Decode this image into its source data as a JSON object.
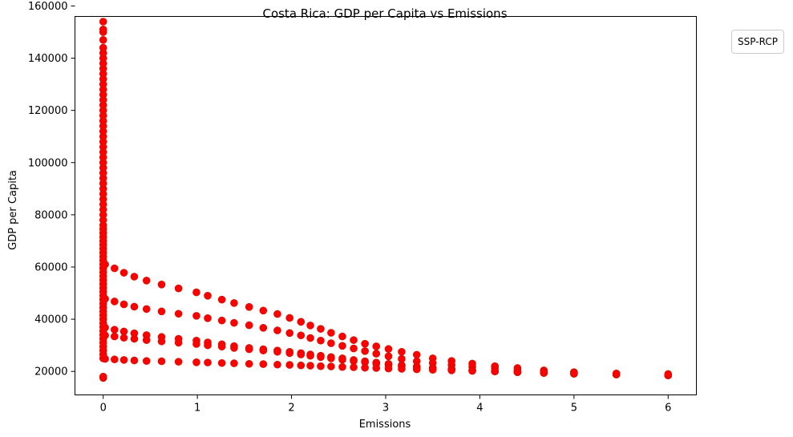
{
  "chart_data": {
    "type": "scatter",
    "title": "Costa Rica: GDP per Capita vs Emissions",
    "xlabel": "Emissions",
    "ylabel": "GDP per Capita",
    "xlim": [
      -0.3,
      6.3
    ],
    "ylim": [
      11000,
      156000
    ],
    "x_ticks": [
      0,
      1,
      2,
      3,
      4,
      5,
      6
    ],
    "y_ticks": [
      20000,
      40000,
      60000,
      80000,
      100000,
      120000,
      140000,
      160000
    ],
    "legend_title": "SSP-RCP",
    "legend_position": "outside upper right",
    "grid": false,
    "marker_color": "#ff0000",
    "marker_edge": "#cc1100",
    "series": [
      {
        "x": [
          0.02,
          0.12,
          0.22,
          0.33,
          0.46,
          0.62,
          0.8,
          0.99,
          1.11,
          1.26,
          1.39,
          1.55,
          1.7,
          1.85,
          1.98,
          2.1,
          2.2,
          2.31,
          2.42,
          2.54,
          2.66,
          2.78,
          2.9,
          3.03,
          3.17,
          3.33,
          3.5,
          3.7,
          3.92,
          4.16,
          4.4,
          4.68,
          5.0,
          5.45,
          6.0
        ],
        "y": [
          61000,
          59500,
          57800,
          56300,
          54800,
          53300,
          51800,
          50300,
          49000,
          47500,
          46200,
          44700,
          43300,
          42000,
          40500,
          39000,
          37600,
          36300,
          34800,
          33400,
          32000,
          30600,
          29600,
          28600,
          27500,
          26400,
          25000,
          24000,
          23000,
          22000,
          21300,
          20400,
          19700,
          19000,
          18500
        ]
      },
      {
        "x": [
          0.02,
          0.12,
          0.22,
          0.33,
          0.46,
          0.62,
          0.8,
          0.99,
          1.11,
          1.26,
          1.39,
          1.55,
          1.7,
          1.85,
          1.98,
          2.1,
          2.2,
          2.31,
          2.42,
          2.54,
          2.66,
          2.78,
          2.9,
          3.03,
          3.17,
          3.33,
          3.5,
          3.7,
          3.92,
          4.16,
          4.4,
          4.68,
          5.0,
          5.45,
          6.0
        ],
        "y": [
          47800,
          46800,
          45700,
          44800,
          43900,
          43000,
          42100,
          41300,
          40400,
          39500,
          38600,
          37700,
          36700,
          35700,
          34700,
          33800,
          32800,
          31800,
          30800,
          29800,
          28800,
          27800,
          26800,
          25800,
          24800,
          23900,
          23200,
          22500,
          21800,
          21200,
          20500,
          20000,
          19500,
          19000,
          18500
        ]
      },
      {
        "x": [
          0.02,
          0.12,
          0.22,
          0.33,
          0.46,
          0.62,
          0.8,
          0.99,
          1.11,
          1.26,
          1.39,
          1.55,
          1.7,
          1.85,
          1.98,
          2.1,
          2.2,
          2.31,
          2.42,
          2.54,
          2.66,
          2.78,
          2.9,
          3.03,
          3.17,
          3.33,
          3.5,
          3.7,
          3.92,
          4.16,
          4.4,
          4.68,
          5.0,
          5.45,
          6.0
        ],
        "y": [
          36800,
          36000,
          35300,
          34600,
          33900,
          33200,
          32500,
          31800,
          31100,
          30400,
          29700,
          29000,
          28500,
          28000,
          27500,
          27000,
          26500,
          26000,
          25500,
          25000,
          24400,
          23900,
          23400,
          22900,
          22400,
          21900,
          21400,
          20900,
          20400,
          20000,
          19700,
          19400,
          19100,
          18800,
          18500
        ]
      },
      {
        "x": [
          0.02,
          0.12,
          0.22,
          0.33,
          0.46,
          0.62,
          0.8,
          0.99,
          1.11,
          1.26,
          1.39,
          1.55,
          1.7,
          1.85,
          1.98,
          2.1,
          2.2,
          2.31,
          2.42,
          2.54,
          2.66,
          2.78,
          2.9,
          3.03,
          3.17,
          3.33,
          3.5,
          3.7,
          3.92,
          4.16,
          4.4,
          4.68,
          5.0,
          5.45,
          6.0
        ],
        "y": [
          33800,
          33400,
          32900,
          32500,
          32000,
          31500,
          31000,
          30500,
          30000,
          29500,
          29000,
          28500,
          28000,
          27500,
          27000,
          26500,
          26000,
          25500,
          25000,
          24500,
          24000,
          23500,
          23000,
          22500,
          22000,
          21600,
          21200,
          20800,
          20400,
          20000,
          19700,
          19400,
          19100,
          18800,
          18500
        ]
      },
      {
        "x": [
          0.02,
          0.12,
          0.22,
          0.33,
          0.46,
          0.62,
          0.8,
          0.99,
          1.11,
          1.26,
          1.39,
          1.55,
          1.7,
          1.85,
          1.98,
          2.1,
          2.2,
          2.31,
          2.42,
          2.54,
          2.66,
          2.78,
          2.9,
          3.03,
          3.17,
          3.33,
          3.5,
          3.7,
          3.92,
          4.16,
          4.4,
          4.68,
          5.0,
          5.45,
          6.0
        ],
        "y": [
          24800,
          24600,
          24400,
          24200,
          24000,
          23900,
          23700,
          23500,
          23400,
          23200,
          23100,
          22900,
          22800,
          22600,
          22500,
          22300,
          22200,
          22000,
          21900,
          21700,
          21600,
          21400,
          21300,
          21100,
          21000,
          20800,
          20600,
          20400,
          20200,
          20000,
          19800,
          19600,
          19400,
          19200,
          19000
        ]
      },
      {
        "x": [
          0.0,
          0.0,
          0.0,
          0.0,
          0.0,
          0.0,
          0.0,
          0.0,
          0.0,
          0.0,
          0.0,
          0.0,
          0.0,
          0.0,
          0.0,
          0.0,
          0.0,
          0.0,
          0.0,
          0.0,
          0.0,
          0.0,
          0.0,
          0.0,
          0.0,
          0.0,
          0.0,
          0.0,
          0.0,
          0.0,
          0.0,
          0.0,
          0.0,
          0.0,
          0.0,
          0.0,
          0.0,
          0.0,
          0.0,
          0.0,
          0.0,
          0.0,
          0.0,
          0.0,
          0.0,
          0.0,
          0.0,
          0.0,
          0.0,
          0.0,
          0.0,
          0.0,
          0.0,
          0.0,
          0.0,
          0.0,
          0.0,
          0.0,
          0.0,
          0.0,
          0.0,
          0.0,
          0.0,
          0.0,
          0.0,
          0.0,
          0.0,
          0.0,
          0.0,
          0.0,
          0.0,
          0.0,
          0.0,
          0.0,
          0.0
        ],
        "y": [
          17500,
          18000,
          25000,
          26500,
          28000,
          29500,
          31000,
          32500,
          34000,
          35500,
          37000,
          38500,
          40000,
          41500,
          43000,
          44500,
          46000,
          47500,
          49000,
          50500,
          52000,
          53500,
          55000,
          56500,
          58000,
          59500,
          61000,
          62500,
          64000,
          65500,
          67000,
          68500,
          70000,
          71500,
          73000,
          74500,
          76000,
          78000,
          80000,
          82000,
          84000,
          86000,
          88000,
          90000,
          92000,
          94000,
          96000,
          98000,
          100000,
          102000,
          104000,
          106000,
          108000,
          110000,
          112000,
          114000,
          116000,
          118000,
          120000,
          122000,
          124000,
          126000,
          128000,
          130000,
          132000,
          134000,
          136000,
          138000,
          140000,
          142000,
          144000,
          147000,
          150000,
          151000,
          154000
        ]
      }
    ]
  }
}
